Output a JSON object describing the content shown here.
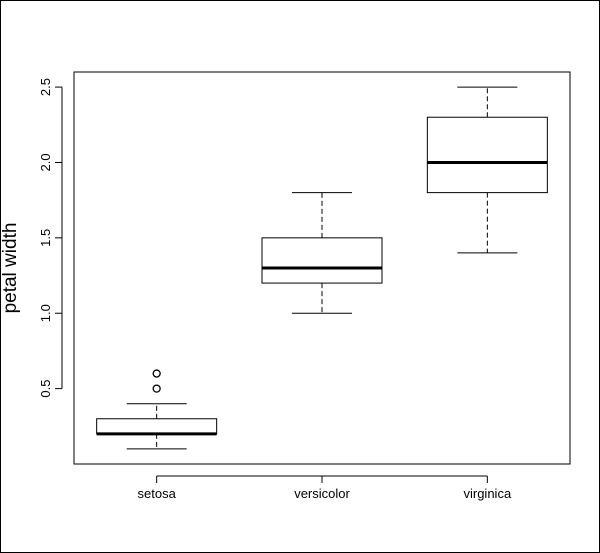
{
  "chart_data": {
    "type": "boxplot",
    "title": "",
    "xlabel": "",
    "ylabel": "petal width",
    "ylim": [
      0.0,
      2.6
    ],
    "yticks": [
      "0.5",
      "1.0",
      "1.5",
      "2.0",
      "2.5"
    ],
    "grid": false,
    "categories": [
      "setosa",
      "versicolor",
      "virginica"
    ],
    "boxes": [
      {
        "category": "setosa",
        "whisker_low": 0.1,
        "q1": 0.2,
        "median": 0.2,
        "q3": 0.3,
        "whisker_high": 0.4,
        "outliers": [
          0.5,
          0.6
        ]
      },
      {
        "category": "versicolor",
        "whisker_low": 1.0,
        "q1": 1.2,
        "median": 1.3,
        "q3": 1.5,
        "whisker_high": 1.8,
        "outliers": []
      },
      {
        "category": "virginica",
        "whisker_low": 1.4,
        "q1": 1.8,
        "median": 2.0,
        "q3": 2.3,
        "whisker_high": 2.5,
        "outliers": []
      }
    ]
  }
}
